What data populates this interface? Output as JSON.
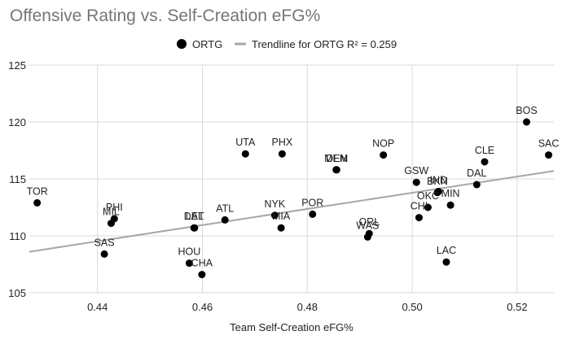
{
  "chart_data": {
    "type": "scatter",
    "title": "Offensive Rating vs. Self-Creation eFG%",
    "xlabel": "Team Self-Creation eFG%",
    "ylabel": "",
    "xlim": [
      0.427,
      0.527
    ],
    "ylim": [
      105,
      125
    ],
    "xticks": [
      0.44,
      0.46,
      0.48,
      0.5,
      0.52
    ],
    "xtick_labels": [
      "0.44",
      "0.46",
      "0.48",
      "0.50",
      "0.52"
    ],
    "yticks": [
      105,
      110,
      115,
      120,
      125
    ],
    "ytick_labels": [
      "105",
      "110",
      "115",
      "120",
      "125"
    ],
    "grid": true,
    "legend_position": "top",
    "colors": {
      "points": "#000000",
      "trendline": "#a6a6a6",
      "grid": "#d9d9d9",
      "title": "#757575"
    },
    "series": [
      {
        "name": "ORTG",
        "points": [
          {
            "label": "TOR",
            "x": 0.4285,
            "y": 112.9
          },
          {
            "label": "SAS",
            "x": 0.4413,
            "y": 108.4
          },
          {
            "label": "HOU",
            "x": 0.4575,
            "y": 107.6
          },
          {
            "label": "CHA",
            "x": 0.4599,
            "y": 106.6
          },
          {
            "label": "LAL",
            "x": 0.4585,
            "y": 110.7
          },
          {
            "label": "DET",
            "x": 0.4584,
            "y": 110.7
          },
          {
            "label": "ATL",
            "x": 0.4643,
            "y": 111.4
          },
          {
            "label": "UTA",
            "x": 0.4682,
            "y": 117.2
          },
          {
            "label": "MIL",
            "x": 0.4426,
            "y": 111.1
          },
          {
            "label": "PHI",
            "x": 0.4432,
            "y": 111.5
          },
          {
            "label": "NYK",
            "x": 0.4738,
            "y": 111.8
          },
          {
            "label": "MIA",
            "x": 0.475,
            "y": 110.7
          },
          {
            "label": "PHX",
            "x": 0.4752,
            "y": 117.2
          },
          {
            "label": "POR",
            "x": 0.481,
            "y": 111.9
          },
          {
            "label": "MEM",
            "x": 0.4855,
            "y": 115.8
          },
          {
            "label": "DEN",
            "x": 0.4856,
            "y": 115.8
          },
          {
            "label": "WAS",
            "x": 0.4915,
            "y": 109.9
          },
          {
            "label": "ORL",
            "x": 0.4918,
            "y": 110.2
          },
          {
            "label": "NOP",
            "x": 0.4945,
            "y": 117.1
          },
          {
            "label": "GSW",
            "x": 0.5008,
            "y": 114.7
          },
          {
            "label": "CHI",
            "x": 0.5013,
            "y": 111.6
          },
          {
            "label": "OKC",
            "x": 0.503,
            "y": 112.5
          },
          {
            "label": "BKN",
            "x": 0.5048,
            "y": 113.8
          },
          {
            "label": "LAC",
            "x": 0.5065,
            "y": 107.7
          },
          {
            "label": "MIN",
            "x": 0.5073,
            "y": 112.7
          },
          {
            "label": "IND",
            "x": 0.505,
            "y": 113.9
          },
          {
            "label": "DAL",
            "x": 0.5123,
            "y": 114.5
          },
          {
            "label": "CLE",
            "x": 0.5138,
            "y": 116.5
          },
          {
            "label": "BOS",
            "x": 0.5218,
            "y": 120.0
          },
          {
            "label": "SAC",
            "x": 0.526,
            "y": 117.1
          }
        ]
      }
    ],
    "trendline": {
      "name": "Trendline for ORTG R² = 0.259",
      "x": [
        0.427,
        0.527
      ],
      "y": [
        108.6,
        115.7
      ]
    }
  }
}
